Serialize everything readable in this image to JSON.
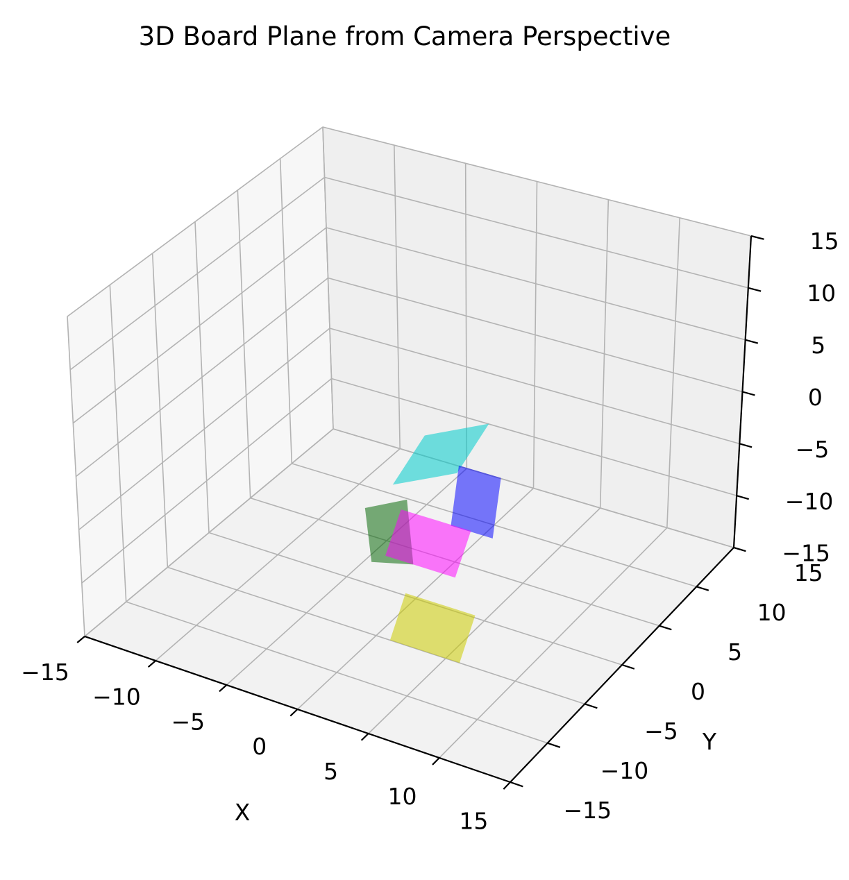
{
  "chart_data": {
    "type": "surface3d",
    "title": "3D Board Plane from Camera Perspective",
    "xlabel": "X",
    "ylabel": "Y",
    "zlabel": "",
    "xlim": [
      -15,
      15
    ],
    "ylim": [
      -15,
      15
    ],
    "zlim": [
      -15,
      15
    ],
    "xticks": [
      -15,
      -10,
      -5,
      0,
      5,
      10,
      15
    ],
    "yticks": [
      -15,
      -10,
      -5,
      0,
      5,
      10,
      15
    ],
    "zticks": [
      -15,
      -10,
      -5,
      0,
      5,
      10,
      15
    ],
    "grid": true,
    "planes": [
      {
        "color": "#00cccc",
        "alpha": 0.55,
        "corners": [
          [
            -1,
            3,
            -2
          ],
          [
            3,
            4,
            0
          ],
          [
            3,
            0,
            -2
          ],
          [
            -1,
            -1,
            -4
          ]
        ]
      },
      {
        "color": "#0000ff",
        "alpha": 0.52,
        "corners": [
          [
            2,
            2,
            -3
          ],
          [
            5,
            2,
            -3
          ],
          [
            5,
            1,
            -8
          ],
          [
            2,
            1,
            -8
          ]
        ]
      },
      {
        "color": "#006400",
        "alpha": 0.52,
        "corners": [
          [
            -3,
            -1,
            -7
          ],
          [
            0,
            -1,
            -5
          ],
          [
            1,
            -2,
            -10
          ],
          [
            -2,
            -2,
            -11
          ]
        ]
      },
      {
        "color": "#ff00ff",
        "alpha": 0.52,
        "corners": [
          [
            -1,
            0,
            -7
          ],
          [
            4,
            0,
            -7
          ],
          [
            4,
            -2,
            -10
          ],
          [
            -1,
            -2,
            -10
          ]
        ]
      },
      {
        "color": "#cccc00",
        "alpha": 0.55,
        "corners": [
          [
            1,
            -3,
            -12
          ],
          [
            6,
            -3,
            -12
          ],
          [
            6,
            -5,
            -15
          ],
          [
            1,
            -5,
            -15
          ]
        ]
      }
    ]
  }
}
